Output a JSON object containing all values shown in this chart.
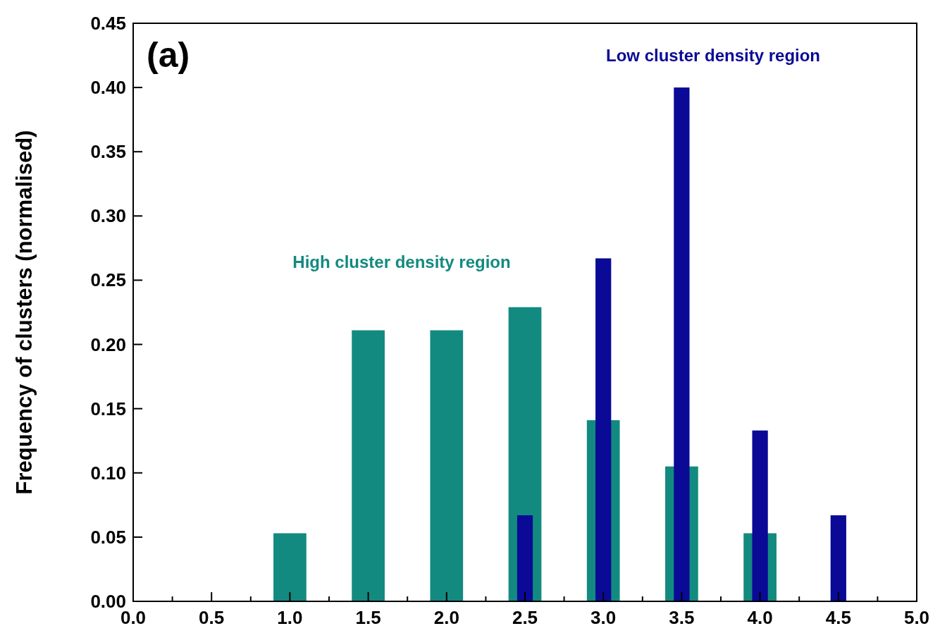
{
  "chart_data": {
    "type": "bar",
    "ylabel": "Frequency of clusters (normalised)",
    "annotations": [
      "(a)"
    ],
    "xlim": [
      0,
      5
    ],
    "xticks": [
      {
        "value": 0,
        "label": "0.0"
      },
      {
        "value": 0.25,
        "label": null
      },
      {
        "value": 0.5,
        "label": "0.5"
      },
      {
        "value": 0.75,
        "label": null
      },
      {
        "value": 1,
        "label": "1.0"
      },
      {
        "value": 1.25,
        "label": null
      },
      {
        "value": 1.5,
        "label": "1.5"
      },
      {
        "value": 1.75,
        "label": null
      },
      {
        "value": 2,
        "label": "2.0"
      },
      {
        "value": 2.25,
        "label": null
      },
      {
        "value": 2.5,
        "label": "2.5"
      },
      {
        "value": 2.75,
        "label": null
      },
      {
        "value": 3,
        "label": "3.0"
      },
      {
        "value": 3.25,
        "label": null
      },
      {
        "value": 3.5,
        "label": "3.5"
      },
      {
        "value": 3.75,
        "label": null
      },
      {
        "value": 4,
        "label": "4.0"
      },
      {
        "value": 4.25,
        "label": null
      },
      {
        "value": 4.5,
        "label": "4.5"
      },
      {
        "value": 4.75,
        "label": null
      },
      {
        "value": 5,
        "label": "5.0"
      }
    ],
    "ylim": [
      0,
      0.45
    ],
    "yticks": [
      {
        "value": 0,
        "label": "0.00"
      },
      {
        "value": 0.05,
        "label": "0.05"
      },
      {
        "value": 0.1,
        "label": "0.10"
      },
      {
        "value": 0.15,
        "label": "0.15"
      },
      {
        "value": 0.2,
        "label": "0.20"
      },
      {
        "value": 0.25,
        "label": "0.25"
      },
      {
        "value": 0.3,
        "label": "0.30"
      },
      {
        "value": 0.35,
        "label": "0.35"
      },
      {
        "value": 0.4,
        "label": "0.40"
      },
      {
        "value": 0.45,
        "label": "0.45"
      }
    ],
    "series": [
      {
        "name": "High cluster density region",
        "color": "#138a80",
        "x": [
          1,
          1.5,
          2,
          2.5,
          3,
          3.5,
          4
        ],
        "values": [
          0.053,
          0.211,
          0.211,
          0.229,
          0.141,
          0.105,
          0.053
        ]
      },
      {
        "name": "Low cluster density region",
        "color": "#0a0a96",
        "x": [
          2.5,
          3,
          3.5,
          4,
          4.5
        ],
        "values": [
          0.067,
          0.267,
          0.4,
          0.133,
          0.067
        ]
      }
    ]
  }
}
